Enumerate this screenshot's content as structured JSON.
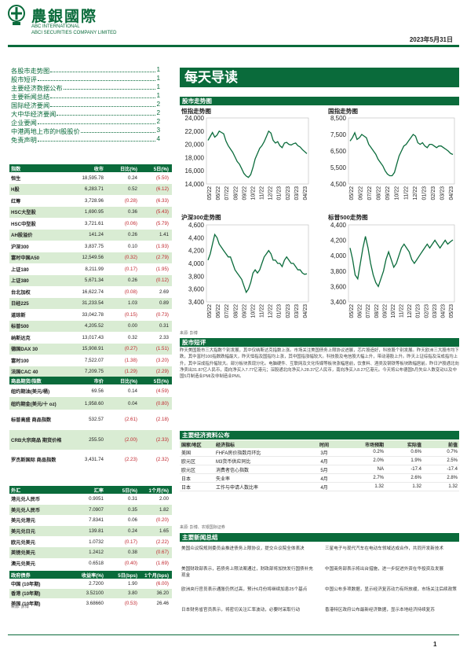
{
  "header": {
    "brand_cn": "農銀國際",
    "brand_en1": "ABC INTERNATIONAL",
    "brand_en2": "ABCI SECURITIES COMPANY LIMITED",
    "date": "2023年5月31日"
  },
  "toc": [
    {
      "label": "各股市走势图",
      "page": "1"
    },
    {
      "label": "股市短评",
      "page": "1"
    },
    {
      "label": "主要经济数据公布",
      "page": "1"
    },
    {
      "label": "主要新闻总结",
      "page": "1"
    },
    {
      "label": "国际经济要闻",
      "page": "2"
    },
    {
      "label": "大中华经济要闻",
      "page": "2"
    },
    {
      "label": "企业要闻",
      "page": "2"
    },
    {
      "label": "中港两地上市的H股股价",
      "page": "3"
    },
    {
      "label": "免责声明",
      "page": "4"
    }
  ],
  "index_table": {
    "headers": [
      "指数",
      "收市",
      "日比(%)",
      "5日(%)"
    ],
    "rows": [
      [
        "恒生",
        "18,595.78",
        "0.24",
        "(5.50)"
      ],
      [
        "H股",
        "6,283.71",
        "0.52",
        "(6.12)"
      ],
      [
        "红筹",
        "3,728.96",
        "(0.28)",
        "(6.33)"
      ],
      [
        "HSC大型股",
        "1,690.95",
        "0.36",
        "(5.43)"
      ],
      [
        "HSC中型股",
        "3,721.61",
        "(0.06)",
        "(5.79)"
      ],
      [
        "AH股溢价",
        "141.24",
        "0.26",
        "1.41"
      ],
      [
        "沪深300",
        "3,837.75",
        "0.10",
        "(1.93)"
      ],
      [
        "富时中国A50",
        "12,549.56",
        "(0.32)",
        "(2.79)"
      ],
      [
        "上证180",
        "8,211.99",
        "(0.17)",
        "(1.95)"
      ],
      [
        "上证380",
        "5,671.34",
        "0.26",
        "(0.12)"
      ],
      [
        "台北加权",
        "16,622.74",
        "(0.08)",
        "2.69"
      ],
      [
        "日经225",
        "31,233.54",
        "1.03",
        "0.89"
      ],
      [
        "道琼斯",
        "33,042.78",
        "(0.15)",
        "(0.73)"
      ],
      [
        "标普500",
        "4,205.52",
        "0.00",
        "0.31"
      ],
      [
        "纳斯达克",
        "13,017.43",
        "0.32",
        "2.33"
      ],
      [
        "德国DAX 30",
        "15,908.91",
        "(0.27)",
        "(1.51)"
      ],
      [
        "富时100",
        "7,522.07",
        "(1.38)",
        "(3.20)"
      ],
      [
        "法国CAC 40",
        "7,209.75",
        "(1.29)",
        "(2.29)"
      ]
    ]
  },
  "commodity_table": {
    "headers": [
      "商品期货/指数",
      "市价",
      "日比(%)",
      "5日(%)"
    ],
    "rows": [
      [
        "纽约期油(美元/桶)",
        "69.56",
        "0.14",
        "(4.59)"
      ],
      [
        "纽约期金(美元/十 oz)",
        "1,958.60",
        "0.04",
        "(0.80)"
      ],
      [
        "标普高盛 商品指数",
        "532.57",
        "(2.61)",
        "(2.18)"
      ],
      [
        "CRB大宗商品 期货价格指数",
        "255.50",
        "(2.00)",
        "(2.33)"
      ],
      [
        "罗杰斯国际 商品指数",
        "3,431.74",
        "(2.23)",
        "(2.32)"
      ]
    ]
  },
  "fx_table": {
    "headers": [
      "外汇",
      "汇率",
      "5日(%)",
      "1个月(%)"
    ],
    "rows": [
      [
        "港元兑人民币",
        "0.9051",
        "0.31",
        "2.00"
      ],
      [
        "美元兑人民币",
        "7.0907",
        "0.35",
        "1.82"
      ],
      [
        "美元兑港元",
        "7.8341",
        "0.06",
        "(0.20)"
      ],
      [
        "美元兑日元",
        "139.81",
        "0.24",
        "1.65"
      ],
      [
        "欧元兑美元",
        "1.0732",
        "(0.17)",
        "(2.22)"
      ],
      [
        "英镑兑美元",
        "1.2412",
        "0.38",
        "(0.67)"
      ],
      [
        "澳元兑美元",
        "0.6518",
        "(0.40)",
        "(1.69)"
      ]
    ]
  },
  "bond_table": {
    "headers": [
      "政府债券",
      "收益率(%)",
      "5日(bps)",
      "1个月(bps)"
    ],
    "rows": [
      [
        "中国 (10年期)",
        "2.7200",
        "1.90",
        "(6.00)"
      ],
      [
        "香港 (10年期)",
        "3.52100",
        "3.80",
        "36.20"
      ],
      [
        "美国 (10年期)",
        "3.68660",
        "(0.53)",
        "26.46"
      ]
    ]
  },
  "left_source": "来源: 彭博",
  "title_banner": "每天导读",
  "charts_section": "股市走势图",
  "chart_data": [
    {
      "type": "line",
      "title": "恒指走势图",
      "yticks": [
        "24,000",
        "22,000",
        "20,000",
        "18,000",
        "16,000",
        "14,000"
      ],
      "ylim": [
        14000,
        24000
      ],
      "xticks": [
        "05/22",
        "06/22",
        "07/22",
        "08/22",
        "09/22",
        "10/22",
        "11/22",
        "12/22",
        "01/23",
        "02/23",
        "03/23",
        "04/23"
      ],
      "values": [
        20600,
        21200,
        21800,
        21100,
        21400,
        22000,
        21800,
        21600,
        20500,
        19800,
        19300,
        18800,
        18100,
        17400,
        17000,
        16300,
        15600,
        15200,
        15000,
        15400,
        16500,
        17800,
        18600,
        19400,
        19800,
        20400,
        21200,
        22000,
        21700,
        20600,
        20200,
        20400,
        19800,
        19500,
        20200,
        20300,
        20000,
        19900,
        20100,
        20200,
        19800,
        19600,
        19200,
        18900,
        18596
      ]
    },
    {
      "type": "line",
      "title": "国指走势图",
      "yticks": [
        "8,500",
        "7,500",
        "6,500",
        "5,500",
        "4,500"
      ],
      "ylim": [
        4500,
        8500
      ],
      "xticks": [
        "05/22",
        "06/22",
        "07/22",
        "08/22",
        "09/22",
        "10/22",
        "11/22",
        "12/22",
        "01/23",
        "02/23",
        "03/23",
        "04/23"
      ],
      "values": [
        7100,
        7300,
        7600,
        7200,
        7300,
        7500,
        7400,
        7300,
        6900,
        6700,
        6500,
        6300,
        6000,
        5800,
        5600,
        5300,
        5100,
        5000,
        5000,
        5200,
        5700,
        6200,
        6500,
        6800,
        6900,
        7100,
        7300,
        7500,
        7400,
        7000,
        6900,
        7000,
        6800,
        6700,
        6900,
        6900,
        6800,
        6700,
        6800,
        6800,
        6700,
        6600,
        6500,
        6350,
        6284
      ]
    },
    {
      "type": "line",
      "title": "沪深300走势图",
      "yticks": [
        "4,600",
        "4,400",
        "4,200",
        "4,000",
        "3,800",
        "3,600",
        "3,400"
      ],
      "ylim": [
        3400,
        4600
      ],
      "xticks": [
        "05/22",
        "06/22",
        "07/22",
        "08/22",
        "09/22",
        "10/22",
        "11/22",
        "12/22",
        "01/23",
        "02/23",
        "03/23",
        "04/23"
      ],
      "values": [
        4050,
        4150,
        4300,
        4450,
        4400,
        4300,
        4250,
        4200,
        4150,
        4100,
        4100,
        4000,
        3900,
        3850,
        3800,
        3750,
        3650,
        3550,
        3600,
        3700,
        3850,
        3900,
        3850,
        3900,
        4000,
        4100,
        4150,
        4200,
        4150,
        4050,
        4050,
        4000,
        4000,
        3950,
        4050,
        4100,
        4050,
        4000,
        4000,
        3950,
        3900,
        3900,
        3850,
        3830,
        3838
      ]
    },
    {
      "type": "line",
      "title": "标普500走势图",
      "yticks": [
        "4,400",
        "4,200",
        "4,000",
        "3,800",
        "3,600",
        "3,400"
      ],
      "ylim": [
        3400,
        4400
      ],
      "xticks": [
        "05/22",
        "06/22",
        "07/22",
        "08/22",
        "09/22",
        "10/22",
        "11/22",
        "12/22",
        "01/23",
        "02/23",
        "03/23",
        "04/23",
        "05/23"
      ],
      "values": [
        4100,
        3950,
        3750,
        3700,
        3900,
        4100,
        4250,
        4100,
        3900,
        3750,
        3650,
        3600,
        3700,
        3800,
        3950,
        4050,
        3950,
        3850,
        3900,
        4000,
        4100,
        4150,
        4100,
        4050,
        3950,
        3900,
        3950,
        4000,
        4050,
        4100,
        4150,
        4100,
        4150,
        4200,
        4150,
        4100,
        4150,
        4200,
        4150,
        4180,
        4205
      ]
    }
  ],
  "chart_source": "来源: 彭博",
  "commentary_section": "股市短评",
  "commentary": "昨天美国股市三大指数个别发展，其中仅纳斯达克指数上涨。市场关注美国债务上限协议进展，芯片股造好，科技股个别发展。昨天欧洲三大股市均下跌，其中富时100指数跌幅最大，昨天恒指及国指均上涨，其中国指涨幅较大。科技股及电信股大幅上升，带动港股上升。昨天上证综指及深成指均上升，其中深成指升幅较大。部分板块表现分化。电脑硬件、互联网及文化传媒等板块涨幅居前，饮食料、酒类及钢铁等板块跌幅居前。昨日沪股通北向净卖出31.87亿人民币，南向净买入7.77亿港元；深股通北向净买入28.37亿人民币，南向净买入8.27亿港元。今天将公布德国5月失业人数变动以及中国5月制造业PMI及非制造业PMI。",
  "econ_section": "主要经济资料公布",
  "econ_table": {
    "headers": [
      "国家/地区",
      "经济指标",
      "时间",
      "市场预期",
      "实际值",
      "前值"
    ],
    "rows": [
      [
        "美国",
        "FHFA房价指数月环比",
        "3月",
        "0.2%",
        "0.6%",
        "0.7%"
      ],
      [
        "欧元区",
        "M3货币供应同比",
        "4月",
        "2.0%",
        "1.9%",
        "2.5%"
      ],
      [
        "欧元区",
        "消费者信心指数",
        "5月",
        "NA",
        "-17.4",
        "-17.4"
      ],
      [
        "日本",
        "失业率",
        "4月",
        "2.7%",
        "2.6%",
        "2.8%"
      ],
      [
        "日本",
        "工作与申请人数比率",
        "4月",
        "1.32",
        "1.32",
        "1.32"
      ]
    ]
  },
  "econ_source": "来源: 彭博、农银国际证券",
  "news_section": "主要新闻总结",
  "news": [
    "美国众议院规则委员会推进债务上限协议，提交众议院全体表决",
    "三星电子与现代汽车在电动车领域达成合作，共同开发新技术",
    "美国财政部表示，若债务上限法案通过，财政部将加快发行国债补充现金",
    "中国商务部表示将出台措施，进一步促进外资在华投资及发展",
    "欧洲央行官员表示通胀仍然过高，预计6月份将继续加息25个基点",
    "中国公布多项数据，显示经济复苏动力有所放缓，市场关注后续政策",
    "日本财务省官员表示，将密切关注汇率波动，必要时采取行动",
    "香港特区政府公布最新经济数据，显示本地经济持续复苏"
  ],
  "page_number": "1"
}
